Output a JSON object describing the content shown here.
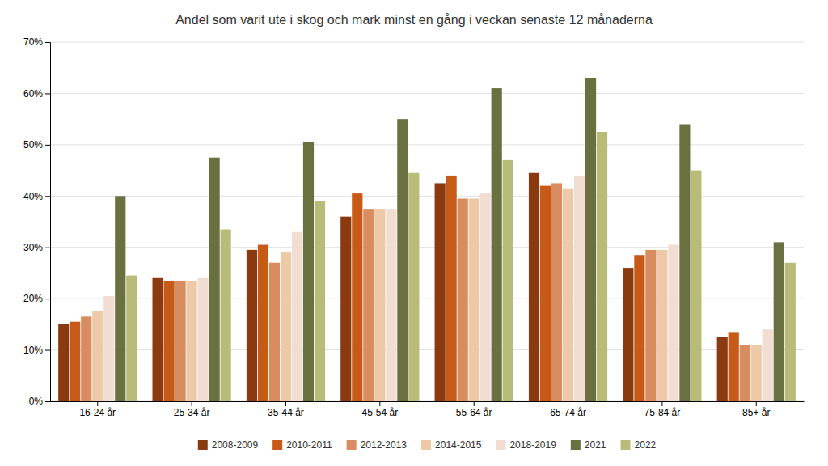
{
  "chart_data": {
    "type": "bar",
    "title": "Andel som varit ute i skog och mark minst en gång i veckan senaste 12 månaderna",
    "categories": [
      "16-24 år",
      "25-34 år",
      "35-44 år",
      "45-54 år",
      "55-64 år",
      "65-74 år",
      "75-84 år",
      "85+ år"
    ],
    "series": [
      {
        "name": "2008-2009",
        "color": "#8B3A10",
        "values": [
          0.15,
          0.24,
          0.295,
          0.36,
          0.425,
          0.445,
          0.26,
          0.125
        ]
      },
      {
        "name": "2010-2011",
        "color": "#C85A18",
        "values": [
          0.155,
          0.235,
          0.305,
          0.405,
          0.44,
          0.42,
          0.285,
          0.135
        ]
      },
      {
        "name": "2012-2013",
        "color": "#D98C60",
        "values": [
          0.165,
          0.235,
          0.27,
          0.375,
          0.395,
          0.425,
          0.295,
          0.11
        ]
      },
      {
        "name": "2014-2015",
        "color": "#EEC9A8",
        "values": [
          0.175,
          0.235,
          0.29,
          0.375,
          0.395,
          0.415,
          0.295,
          0.11
        ]
      },
      {
        "name": "2018-2019",
        "color": "#F2DDD2",
        "values": [
          0.205,
          0.24,
          0.33,
          0.375,
          0.405,
          0.44,
          0.305,
          0.14
        ]
      },
      {
        "name": "2021",
        "color": "#6B7040",
        "values": [
          0.4,
          0.475,
          0.505,
          0.55,
          0.61,
          0.63,
          0.54,
          0.31
        ]
      },
      {
        "name": "2022",
        "color": "#B8BC78",
        "values": [
          0.245,
          0.335,
          0.39,
          0.445,
          0.47,
          0.525,
          0.45,
          0.27
        ]
      }
    ],
    "ylim": [
      0,
      0.7
    ],
    "yticks": [
      {
        "value": 0,
        "label": "0%"
      },
      {
        "value": 0.1,
        "label": "10%"
      },
      {
        "value": 0.2,
        "label": "20%"
      },
      {
        "value": 0.3,
        "label": "30%"
      },
      {
        "value": 0.4,
        "label": "40%"
      },
      {
        "value": 0.5,
        "label": "50%"
      },
      {
        "value": 0.6,
        "label": "60%"
      },
      {
        "value": 0.7,
        "label": "70%"
      }
    ],
    "grid": true,
    "legend": "bottom"
  }
}
